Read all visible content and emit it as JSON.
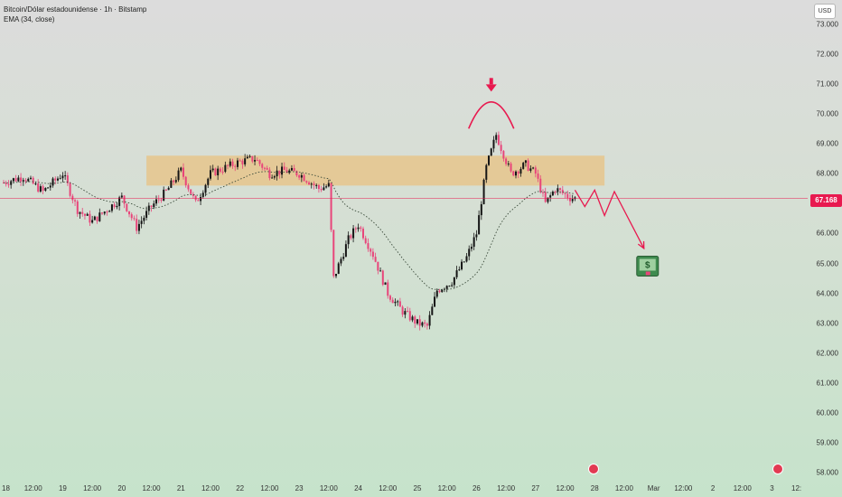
{
  "header": {
    "symbol_line": "Bitcoin/Dólar estadounidense · 1h · Bitstamp",
    "indicator_line": "EMA (34, close)"
  },
  "currency_button": "USD",
  "current_price_label": "67.168",
  "money_icon": "dollar-bill-icon",
  "colors": {
    "bull": "#151515",
    "bear": "#e8457a",
    "zone": "#e6c58c",
    "annotation": "#e8194f",
    "ema": "#3a4a3a"
  },
  "chart_data": {
    "type": "candlestick",
    "title": "Bitcoin/Dólar estadounidense · 1h · Bitstamp",
    "y_axis": {
      "ticks": [
        "73.000",
        "72.000",
        "71.000",
        "70.000",
        "69.000",
        "68.000",
        "67.000",
        "66.000",
        "65.000",
        "64.000",
        "63.000",
        "62.000",
        "61.000",
        "60.000",
        "59.000",
        "58.000"
      ],
      "range": [
        57800,
        73800
      ]
    },
    "x_axis": {
      "labels": [
        "18",
        "12:00",
        "19",
        "12:00",
        "20",
        "12:00",
        "21",
        "12:00",
        "22",
        "12:00",
        "23",
        "12:00",
        "24",
        "12:00",
        "25",
        "12:00",
        "26",
        "12:00",
        "27",
        "12:00",
        "28",
        "12:00",
        "Mar",
        "12:00",
        "2",
        "12:00",
        "3",
        "12:"
      ]
    },
    "price_path": [
      {
        "t": "Feb 18 00:00",
        "price": 67700
      },
      {
        "t": "Feb 18 08:00",
        "price": 67900
      },
      {
        "t": "Feb 18 16:00",
        "price": 67400
      },
      {
        "t": "Feb 19 00:00",
        "price": 68000
      },
      {
        "t": "Feb 19 06:00",
        "price": 66800
      },
      {
        "t": "Feb 19 12:00",
        "price": 66400
      },
      {
        "t": "Feb 19 18:00",
        "price": 66800
      },
      {
        "t": "Feb 20 00:00",
        "price": 67200
      },
      {
        "t": "Feb 20 06:00",
        "price": 66200
      },
      {
        "t": "Feb 20 12:00",
        "price": 66900
      },
      {
        "t": "Feb 20 18:00",
        "price": 67400
      },
      {
        "t": "Feb 21 00:00",
        "price": 68100
      },
      {
        "t": "Feb 21 06:00",
        "price": 67000
      },
      {
        "t": "Feb 21 12:00",
        "price": 68000
      },
      {
        "t": "Feb 22 00:00",
        "price": 68400
      },
      {
        "t": "Feb 22 06:00",
        "price": 68500
      },
      {
        "t": "Feb 22 12:00",
        "price": 68000
      },
      {
        "t": "Feb 22 18:00",
        "price": 68100
      },
      {
        "t": "Feb 23 00:00",
        "price": 68000
      },
      {
        "t": "Feb 23 08:00",
        "price": 67500
      },
      {
        "t": "Feb 23 12:00",
        "price": 67600
      },
      {
        "t": "Feb 23 14:00",
        "price": 64500
      },
      {
        "t": "Feb 23 20:00",
        "price": 65800
      },
      {
        "t": "Feb 24 00:00",
        "price": 66300
      },
      {
        "t": "Feb 24 06:00",
        "price": 65300
      },
      {
        "t": "Feb 24 12:00",
        "price": 64000
      },
      {
        "t": "Feb 24 18:00",
        "price": 63400
      },
      {
        "t": "Feb 25 00:00",
        "price": 63000
      },
      {
        "t": "Feb 25 04:00",
        "price": 62900
      },
      {
        "t": "Feb 25 08:00",
        "price": 64100
      },
      {
        "t": "Feb 25 14:00",
        "price": 64400
      },
      {
        "t": "Feb 25 20:00",
        "price": 65200
      },
      {
        "t": "Feb 26 00:00",
        "price": 66000
      },
      {
        "t": "Feb 26 04:00",
        "price": 68200
      },
      {
        "t": "Feb 26 08:00",
        "price": 69300
      },
      {
        "t": "Feb 26 14:00",
        "price": 68000
      },
      {
        "t": "Feb 26 20:00",
        "price": 68300
      },
      {
        "t": "Feb 27 00:00",
        "price": 68000
      },
      {
        "t": "Feb 27 04:00",
        "price": 67000
      },
      {
        "t": "Feb 27 08:00",
        "price": 67500
      },
      {
        "t": "Feb 27 14:00",
        "price": 67200
      },
      {
        "t": "Feb 27 16:00",
        "price": 67168
      }
    ],
    "ema_period": 34,
    "current_price": 67168,
    "resistance_zone": {
      "from": "Feb 20 10:00",
      "to": "Feb 28 04:00",
      "low": 67600,
      "high": 68600
    },
    "projection_path": [
      {
        "t": "Feb 27 16:00",
        "price": 67450
      },
      {
        "t": "Feb 27 20:00",
        "price": 66900
      },
      {
        "t": "Feb 28 00:00",
        "price": 67450
      },
      {
        "t": "Feb 28 04:00",
        "price": 66600
      },
      {
        "t": "Feb 28 08:00",
        "price": 67400
      },
      {
        "t": "Feb 28 20:00",
        "price": 65500
      }
    ],
    "peak_marker": {
      "t": "Feb 26 06:00",
      "price": 70500
    }
  }
}
